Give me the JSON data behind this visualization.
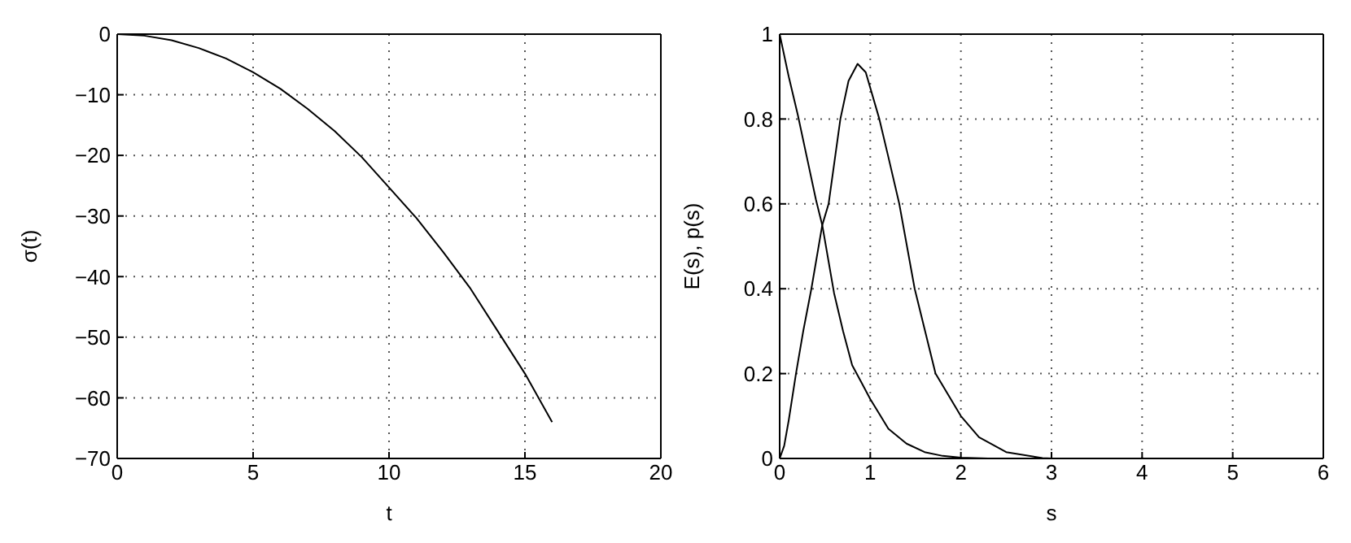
{
  "chart_data": [
    {
      "type": "line",
      "xlabel": "t",
      "ylabel": "σ(t)",
      "xlim": [
        0,
        20
      ],
      "ylim": [
        -70,
        0
      ],
      "xticks": [
        0,
        5,
        10,
        15,
        20
      ],
      "yticks": [
        -70,
        -60,
        -50,
        -40,
        -30,
        -20,
        -10,
        0
      ],
      "grid": true,
      "legend": false,
      "line_style": "solid",
      "marker": "none",
      "series": [
        {
          "color": "#000000",
          "x": [
            0,
            1,
            2,
            3,
            4,
            5,
            6,
            7,
            8,
            9,
            10,
            11,
            12,
            13,
            14,
            15,
            16
          ],
          "values": [
            0,
            -0.25,
            -1,
            -2.3,
            -4,
            -6.3,
            -9,
            -12.3,
            -16,
            -20.3,
            -25.3,
            -30.3,
            -36,
            -42,
            -49,
            -56,
            -64
          ]
        }
      ]
    },
    {
      "type": "line",
      "xlabel": "s",
      "ylabel": "E(s), p(s)",
      "xlim": [
        0,
        6
      ],
      "ylim": [
        0,
        1
      ],
      "xticks": [
        0,
        1,
        2,
        3,
        4,
        5,
        6
      ],
      "yticks": [
        0,
        0.2,
        0.4,
        0.6,
        0.8,
        1
      ],
      "grid": true,
      "legend": false,
      "line_style": "solid",
      "marker": "none",
      "series": [
        {
          "color": "#000000",
          "x": [
            0,
            0.1,
            0.2,
            0.3,
            0.4,
            0.47,
            0.6,
            0.7,
            0.8,
            0.9,
            1.0,
            1.2,
            1.4,
            1.6,
            1.8,
            2.0,
            2.3,
            3,
            6
          ],
          "values": [
            1,
            0.9,
            0.81,
            0.71,
            0.61,
            0.55,
            0.39,
            0.3,
            0.22,
            0.18,
            0.14,
            0.07,
            0.035,
            0.015,
            0.006,
            0.002,
            0,
            0,
            0
          ]
        },
        {
          "color": "#000000",
          "x": [
            0,
            0.05,
            0.1,
            0.18,
            0.26,
            0.35,
            0.47,
            0.54,
            0.67,
            0.76,
            0.86,
            0.95,
            1.1,
            1.2,
            1.32,
            1.49,
            1.72,
            2.0,
            2.2,
            2.5,
            2.9,
            3,
            6
          ],
          "values": [
            0,
            0.03,
            0.09,
            0.2,
            0.3,
            0.4,
            0.55,
            0.6,
            0.8,
            0.89,
            0.93,
            0.91,
            0.8,
            0.71,
            0.6,
            0.4,
            0.2,
            0.1,
            0.05,
            0.015,
            0.001,
            0,
            0
          ]
        }
      ]
    }
  ]
}
